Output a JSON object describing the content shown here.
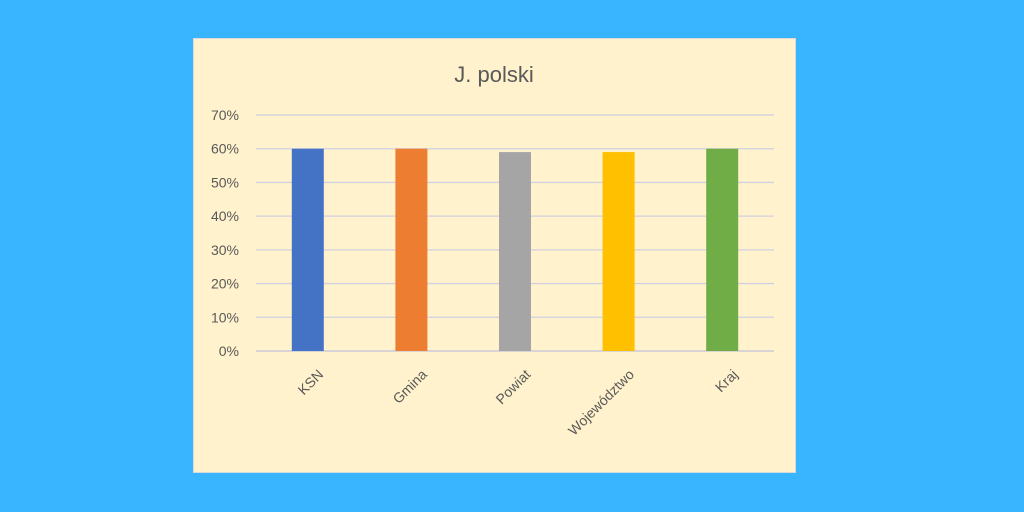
{
  "chart_data": {
    "type": "bar",
    "title": "J. polski",
    "categories": [
      "KSN",
      "Gmina",
      "Powiat",
      "Województwo",
      "Kraj"
    ],
    "values": [
      0.6,
      0.6,
      0.59,
      0.59,
      0.6
    ],
    "colors": [
      "#4472c4",
      "#ed7d31",
      "#a5a5a5",
      "#ffc000",
      "#70ad47"
    ],
    "ylim": [
      0,
      0.7
    ],
    "yticks": [
      0,
      0.1,
      0.2,
      0.3,
      0.4,
      0.5,
      0.6,
      0.7
    ],
    "ytick_labels": [
      "0%",
      "10%",
      "20%",
      "30%",
      "40%",
      "50%",
      "60%",
      "70%"
    ],
    "xlabel": "",
    "ylabel": "",
    "grid": true,
    "legend": "none",
    "background": "#fff2cc",
    "page_background": "#39b4fe"
  }
}
